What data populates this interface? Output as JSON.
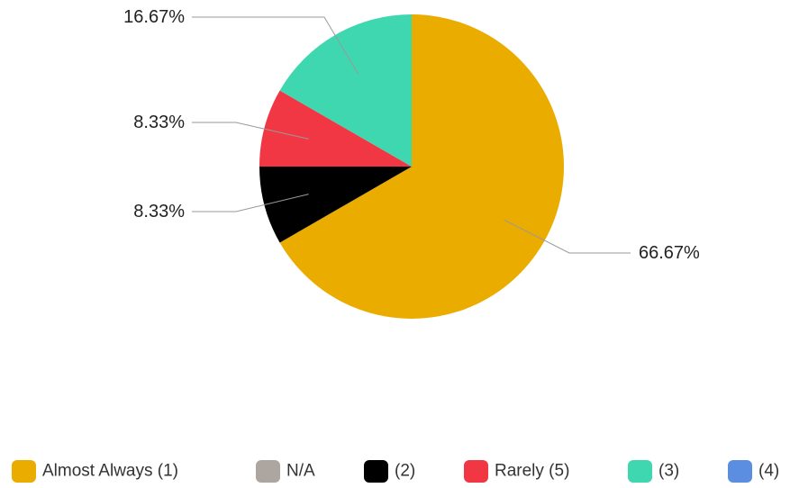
{
  "chart_data": {
    "type": "pie",
    "categories": [
      "Almost Always (1)",
      "N/A",
      "(2)",
      "Rarely (5)",
      "(3)",
      "(4)"
    ],
    "values": [
      66.67,
      0,
      8.33,
      8.33,
      16.67,
      0
    ],
    "value_labels": [
      "66.67%",
      "",
      "8.33%",
      "8.33%",
      "16.67%",
      ""
    ],
    "colors": [
      "#EBAC00",
      "#ADA59F",
      "#000000",
      "#F13744",
      "#3FD7B0",
      "#5B8DE0"
    ],
    "legend_position": "bottom",
    "start": "top",
    "direction": "clockwise"
  }
}
